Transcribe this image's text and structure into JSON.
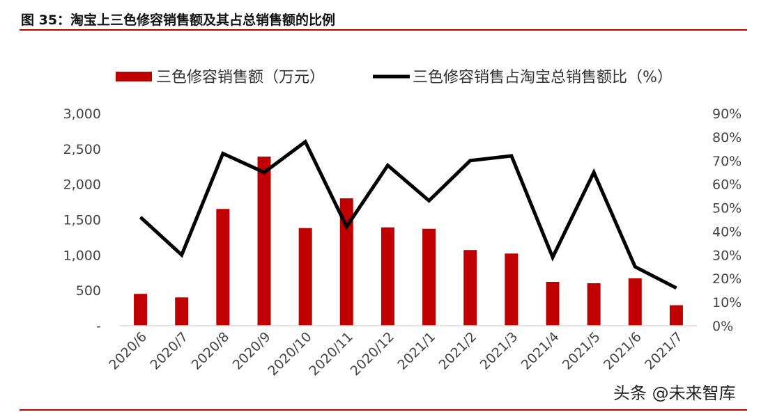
{
  "figure": {
    "title": "图 35：淘宝上三色修容销售额及其占总销售额的比例",
    "watermark": "头条 @未来智库"
  },
  "chart_data": {
    "type": "bar",
    "categories": [
      "2020/6",
      "2020/7",
      "2020/8",
      "2020/9",
      "2020/10",
      "2020/11",
      "2020/12",
      "2021/1",
      "2021/2",
      "2021/3",
      "2021/4",
      "2021/5",
      "2021/6",
      "2021/7"
    ],
    "series": [
      {
        "name": "三色修容销售额（万元）",
        "type": "bar",
        "axis": "left",
        "color": "#c00000",
        "values": [
          450,
          400,
          1650,
          2390,
          1380,
          1800,
          1390,
          1370,
          1070,
          1020,
          620,
          600,
          670,
          290
        ]
      },
      {
        "name": "三色修容销售占淘宝总销售额比（%）",
        "type": "line",
        "axis": "right",
        "color": "#000000",
        "values": [
          46,
          30,
          73,
          65,
          78,
          42,
          68,
          53,
          70,
          72,
          29,
          65,
          25,
          16
        ]
      }
    ],
    "y_left": {
      "ylim": [
        0,
        3000
      ],
      "ticks": [
        0,
        500,
        1000,
        1500,
        2000,
        2500,
        3000
      ],
      "tick_labels": [
        "-",
        "500",
        "1,000",
        "1,500",
        "2,000",
        "2,500",
        "3,000"
      ]
    },
    "y_right": {
      "ylim": [
        0,
        90
      ],
      "ticks": [
        0,
        10,
        20,
        30,
        40,
        50,
        60,
        70,
        80,
        90
      ],
      "tick_labels": [
        "0%",
        "10%",
        "20%",
        "30%",
        "40%",
        "50%",
        "60%",
        "70%",
        "80%",
        "90%"
      ]
    },
    "legend": "top",
    "grid": false
  }
}
